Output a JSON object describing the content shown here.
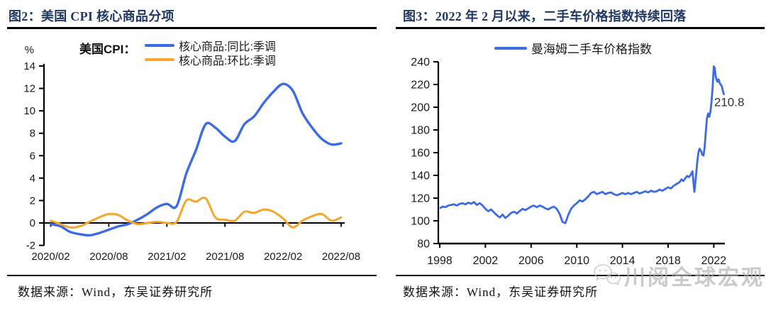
{
  "figure2": {
    "title": "图2：美国 CPI 核心商品分项",
    "source": "数据来源：Wind，东吴证券研究所"
  },
  "figure3": {
    "title": "图3：2022 年 2 月以来，二手车价格指数持续回落",
    "source": "数据来源：Wind，东吴证券研究所"
  },
  "watermark": {
    "text": "川阅全球宏观"
  },
  "colors": {
    "line_blue": "#3d6be4",
    "line_orange": "#f7a62d",
    "title_navy": "#1f3864",
    "watermark_gray": "#c4c4c4"
  },
  "chart_data": [
    {
      "type": "line",
      "title": "美国 CPI 核心商品分项",
      "legend_title": "美国CPI：",
      "ylabel": "%",
      "ylim": [
        -2,
        14
      ],
      "yticks": [
        -2,
        0,
        2,
        4,
        6,
        8,
        10,
        12,
        14
      ],
      "x_labels_shown": [
        "2020/02",
        "2020/08",
        "2021/02",
        "2021/08",
        "2022/02",
        "2022/08"
      ],
      "x_months": [
        "2020/02",
        "2020/03",
        "2020/04",
        "2020/05",
        "2020/06",
        "2020/07",
        "2020/08",
        "2020/09",
        "2020/10",
        "2020/11",
        "2020/12",
        "2021/01",
        "2021/02",
        "2021/03",
        "2021/04",
        "2021/05",
        "2021/06",
        "2021/07",
        "2021/08",
        "2021/09",
        "2021/10",
        "2021/11",
        "2021/12",
        "2022/01",
        "2022/02",
        "2022/03",
        "2022/04",
        "2022/05",
        "2022/06",
        "2022/07",
        "2022/08"
      ],
      "grid": false,
      "legend_position": "top",
      "series": [
        {
          "name": "核心商品:同比:季调",
          "color": "#3d6be4",
          "values": [
            -0.1,
            -0.3,
            -0.8,
            -1.0,
            -1.1,
            -0.9,
            -0.6,
            -0.3,
            -0.1,
            0.3,
            0.8,
            1.4,
            1.7,
            1.5,
            4.4,
            6.5,
            8.8,
            8.5,
            7.7,
            7.3,
            8.8,
            9.5,
            10.7,
            11.7,
            12.4,
            11.8,
            9.8,
            8.5,
            7.5,
            7.0,
            7.1
          ]
        },
        {
          "name": "核心商品:环比:季调",
          "color": "#f7a62d",
          "values": [
            0.2,
            -0.1,
            -0.4,
            -0.3,
            0.1,
            0.5,
            0.8,
            0.7,
            0.2,
            -0.1,
            0.0,
            0.1,
            0.0,
            0.1,
            2.0,
            1.9,
            2.2,
            0.5,
            0.3,
            0.2,
            1.0,
            0.9,
            1.2,
            1.0,
            0.4,
            -0.4,
            0.2,
            0.6,
            0.8,
            0.2,
            0.5
          ]
        }
      ]
    },
    {
      "type": "line",
      "title": "2022 年 2 月以来，二手车价格指数持续回落",
      "ylim": [
        80,
        240
      ],
      "yticks": [
        80,
        100,
        120,
        140,
        160,
        180,
        200,
        220,
        240
      ],
      "xticks": [
        1998,
        2002,
        2006,
        2010,
        2014,
        2018,
        2022
      ],
      "grid": false,
      "legend_position": "top",
      "annotation": {
        "text": "210.8",
        "x": 2022.9,
        "y": 210.8
      },
      "series": [
        {
          "name": "曼海姆二手车价格指数",
          "color": "#3d6be4",
          "points": [
            [
              1998.0,
              111
            ],
            [
              1998.25,
              112.5
            ],
            [
              1998.5,
              112
            ],
            [
              1998.75,
              113.5
            ],
            [
              1999.0,
              114
            ],
            [
              1999.25,
              114.5
            ],
            [
              1999.5,
              113.5
            ],
            [
              1999.75,
              115
            ],
            [
              2000.0,
              115.5
            ],
            [
              2000.25,
              114.5
            ],
            [
              2000.5,
              116
            ],
            [
              2000.75,
              115
            ],
            [
              2001.0,
              116.5
            ],
            [
              2001.25,
              114
            ],
            [
              2001.5,
              115.5
            ],
            [
              2001.75,
              113.5
            ],
            [
              2002.0,
              110.5
            ],
            [
              2002.25,
              108.5
            ],
            [
              2002.5,
              110
            ],
            [
              2002.75,
              107.5
            ],
            [
              2003.0,
              105
            ],
            [
              2003.25,
              103
            ],
            [
              2003.5,
              105.5
            ],
            [
              2003.75,
              102.5
            ],
            [
              2004.0,
              104.5
            ],
            [
              2004.25,
              107
            ],
            [
              2004.5,
              108
            ],
            [
              2004.75,
              106.5
            ],
            [
              2005.0,
              108.5
            ],
            [
              2005.25,
              110.5
            ],
            [
              2005.5,
              109.5
            ],
            [
              2005.75,
              111
            ],
            [
              2006.0,
              112.5
            ],
            [
              2006.25,
              113.5
            ],
            [
              2006.5,
              112
            ],
            [
              2006.75,
              113.5
            ],
            [
              2007.0,
              112.5
            ],
            [
              2007.25,
              111
            ],
            [
              2007.5,
              110
            ],
            [
              2007.75,
              111.5
            ],
            [
              2008.0,
              112.5
            ],
            [
              2008.25,
              110.5
            ],
            [
              2008.5,
              106
            ],
            [
              2008.75,
              99
            ],
            [
              2009.0,
              98
            ],
            [
              2009.25,
              105
            ],
            [
              2009.5,
              110.5
            ],
            [
              2009.75,
              113.5
            ],
            [
              2010.0,
              115.5
            ],
            [
              2010.25,
              118
            ],
            [
              2010.5,
              117
            ],
            [
              2010.75,
              119
            ],
            [
              2011.0,
              121.5
            ],
            [
              2011.25,
              124.5
            ],
            [
              2011.5,
              125.5
            ],
            [
              2011.75,
              123.5
            ],
            [
              2012.0,
              124.5
            ],
            [
              2012.25,
              125.5
            ],
            [
              2012.5,
              123.5
            ],
            [
              2012.75,
              124.5
            ],
            [
              2013.0,
              125
            ],
            [
              2013.25,
              123.5
            ],
            [
              2013.5,
              122.5
            ],
            [
              2013.75,
              123.5
            ],
            [
              2014.0,
              124.5
            ],
            [
              2014.25,
              123.5
            ],
            [
              2014.5,
              124.5
            ],
            [
              2014.75,
              123.5
            ],
            [
              2015.0,
              124.5
            ],
            [
              2015.25,
              125.5
            ],
            [
              2015.5,
              124
            ],
            [
              2015.75,
              125
            ],
            [
              2016.0,
              126
            ],
            [
              2016.25,
              125
            ],
            [
              2016.5,
              126.5
            ],
            [
              2016.75,
              125.5
            ],
            [
              2017.0,
              126
            ],
            [
              2017.25,
              127.5
            ],
            [
              2017.5,
              126.5
            ],
            [
              2017.75,
              128
            ],
            [
              2018.0,
              129.5
            ],
            [
              2018.25,
              128.5
            ],
            [
              2018.5,
              131
            ],
            [
              2018.75,
              132.5
            ],
            [
              2019.0,
              134
            ],
            [
              2019.17,
              136.5
            ],
            [
              2019.33,
              135
            ],
            [
              2019.5,
              137.5
            ],
            [
              2019.67,
              139.5
            ],
            [
              2019.83,
              138.5
            ],
            [
              2020.0,
              141
            ],
            [
              2020.13,
              143.5
            ],
            [
              2020.3,
              125.5
            ],
            [
              2020.45,
              140
            ],
            [
              2020.55,
              152
            ],
            [
              2020.65,
              160
            ],
            [
              2020.75,
              163.5
            ],
            [
              2020.9,
              161
            ],
            [
              2021.0,
              158
            ],
            [
              2021.1,
              157.5
            ],
            [
              2021.2,
              165
            ],
            [
              2021.3,
              178
            ],
            [
              2021.4,
              190
            ],
            [
              2021.5,
              194.5
            ],
            [
              2021.6,
              191.5
            ],
            [
              2021.7,
              196
            ],
            [
              2021.8,
              205
            ],
            [
              2021.9,
              218
            ],
            [
              2022.0,
              236
            ],
            [
              2022.08,
              234.5
            ],
            [
              2022.17,
              227
            ],
            [
              2022.3,
              222.5
            ],
            [
              2022.42,
              224.5
            ],
            [
              2022.5,
              221.5
            ],
            [
              2022.6,
              220
            ],
            [
              2022.7,
              218.5
            ],
            [
              2022.8,
              214
            ],
            [
              2022.9,
              210.8
            ]
          ]
        }
      ]
    }
  ]
}
